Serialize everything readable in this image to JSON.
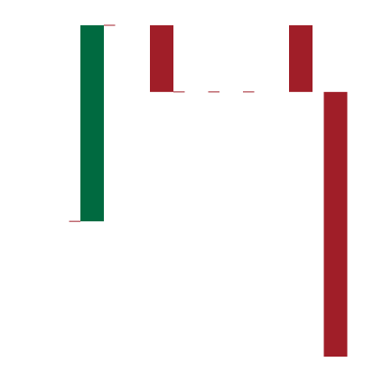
{
  "chart_data": {
    "type": "bar",
    "subtype": "waterfall",
    "title": "",
    "xlabel": "",
    "ylabel": "",
    "categories": [
      "",
      "",
      "",
      "",
      "",
      "",
      "",
      "",
      ""
    ],
    "bars": [
      {
        "start": 0,
        "end": 1,
        "direction": "increase"
      },
      null,
      {
        "start": 1,
        "end": 0.66,
        "direction": "decrease"
      },
      null,
      null,
      null,
      {
        "start": 0.66,
        "end": 1,
        "direction": "decrease"
      },
      {
        "start": 0.66,
        "end": -0.69,
        "direction": "decrease"
      },
      null
    ],
    "connectors": [
      {
        "from": -1,
        "to": 0,
        "value": 0
      },
      {
        "from": 0,
        "to": 1,
        "value": 1
      },
      {
        "from": 2,
        "to": 3,
        "value": 0.66
      },
      {
        "from": 3,
        "to": 4,
        "value": 0.66
      },
      {
        "from": 4,
        "to": 5,
        "value": 0.66
      }
    ],
    "ylim": [
      -0.69,
      1
    ],
    "grid": false,
    "legend": "none",
    "colors": {
      "increase": "#006A40",
      "decrease": "#A01E28",
      "connector": "#A01E28",
      "background": "#FFFFFF"
    }
  }
}
